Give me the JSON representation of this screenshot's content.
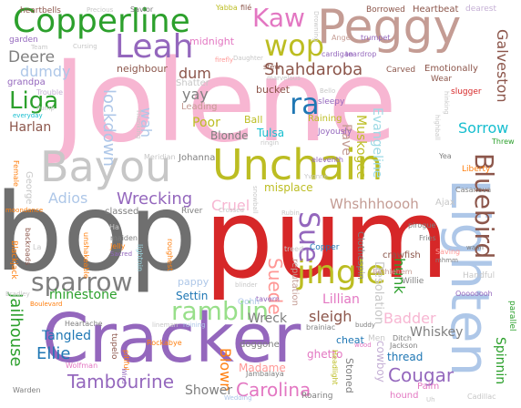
{
  "words": [
    {
      "text": "bop",
      "color": "#6f6f6f"
    },
    {
      "text": "pum",
      "color": "#d62728"
    },
    {
      "text": "Jolene",
      "color": "#f7b6d2"
    },
    {
      "text": "Cracker",
      "color": "#9467bd"
    },
    {
      "text": "Unchain",
      "color": "#bcbd22"
    },
    {
      "text": "Lighten",
      "color": "#aec7e8"
    },
    {
      "text": "Bayou",
      "color": "#c7c7c7"
    },
    {
      "text": "Peggy",
      "color": "#c49c94"
    },
    {
      "text": "Copperline",
      "color": "#2ca02c"
    },
    {
      "text": "Kaw",
      "color": "#e377c2"
    },
    {
      "text": "Leah",
      "color": "#9467bd"
    },
    {
      "text": "wop",
      "color": "#bcbd22"
    },
    {
      "text": "jingle",
      "color": "#bcbd22"
    },
    {
      "text": "sparrow",
      "color": "#7f7f7f"
    },
    {
      "text": "ramblin",
      "color": "#98df8a"
    },
    {
      "text": "Bluebird",
      "color": "#8c564b"
    },
    {
      "text": "Liga",
      "color": "#2ca02c"
    },
    {
      "text": "ra",
      "color": "#1f77b4"
    },
    {
      "text": "Shahdaroba",
      "color": "#8c564b"
    },
    {
      "text": "Deere",
      "color": "#7f7f7f"
    },
    {
      "text": "dumdy",
      "color": "#aec7e8"
    },
    {
      "text": "Galveston",
      "color": "#8c564b"
    },
    {
      "text": "Sorrow",
      "color": "#17becf"
    },
    {
      "text": "Whshhhoooh",
      "color": "#c49c94"
    },
    {
      "text": "Wrecking",
      "color": "#9467bd"
    },
    {
      "text": "Adios",
      "color": "#aec7e8"
    },
    {
      "text": "Cruel",
      "color": "#f7b6d2"
    },
    {
      "text": "Sue",
      "color": "#9467bd"
    },
    {
      "text": "Tambourine",
      "color": "#9467bd"
    },
    {
      "text": "Carolina",
      "color": "#e377c2"
    },
    {
      "text": "Cougar",
      "color": "#9467bd"
    },
    {
      "text": "Jailhouse",
      "color": "#2ca02c"
    },
    {
      "text": "Ellie",
      "color": "#1f77b4"
    },
    {
      "text": "Tangled",
      "color": "#1f77b4"
    },
    {
      "text": "Spinnin",
      "color": "#2ca02c"
    },
    {
      "text": "Whiskey",
      "color": "#7f7f7f"
    },
    {
      "text": "Badder",
      "color": "#f7b6d2"
    },
    {
      "text": "sleigh",
      "color": "#8c564b"
    },
    {
      "text": "Lillian",
      "color": "#e377c2"
    },
    {
      "text": "Suede",
      "color": "#ff9896"
    },
    {
      "text": "hunk",
      "color": "#2ca02c"
    },
    {
      "text": "rhinestone",
      "color": "#2ca02c"
    },
    {
      "text": "Wreck",
      "color": "#7f7f7f"
    },
    {
      "text": "Blown",
      "color": "#ff7f0e"
    },
    {
      "text": "Madame",
      "color": "#ff9896"
    },
    {
      "text": "Shower",
      "color": "#7f7f7f"
    },
    {
      "text": "Harlan",
      "color": "#8c564b"
    },
    {
      "text": "lockdown",
      "color": "#aec7e8"
    },
    {
      "text": "wah",
      "color": "#aec7e8"
    },
    {
      "text": "yay",
      "color": "#7f7f7f"
    },
    {
      "text": "dum",
      "color": "#8c564b"
    },
    {
      "text": "Poor",
      "color": "#bcbd22"
    },
    {
      "text": "Blonde",
      "color": "#7f7f7f"
    },
    {
      "text": "Rave",
      "color": "#c49c94"
    },
    {
      "text": "Muskogee",
      "color": "#bcbd22"
    },
    {
      "text": "Evangeline",
      "color": "#9edae5"
    },
    {
      "text": "Desolation",
      "color": "#c7c7c7"
    },
    {
      "text": "cowboy",
      "color": "#c5b0d5"
    },
    {
      "text": "Clothespin",
      "color": "#7f7f7f"
    },
    {
      "text": "misplace",
      "color": "#bcbd22"
    },
    {
      "text": "Settin",
      "color": "#1f77b4"
    },
    {
      "text": "pappy",
      "color": "#aec7e8"
    },
    {
      "text": "classed",
      "color": "#7f7f7f"
    },
    {
      "text": "reputation",
      "color": "#c49c94"
    },
    {
      "text": "Raining",
      "color": "#bcbd22"
    },
    {
      "text": "Tulsa",
      "color": "#17becf"
    },
    {
      "text": "Joyously",
      "color": "#9467bd"
    },
    {
      "text": "Heartbeat",
      "color": "#8c564b"
    },
    {
      "text": "Borrowed",
      "color": "#8c564b"
    },
    {
      "text": "heartbells",
      "color": "#8c564b"
    },
    {
      "text": "neighbour",
      "color": "#8c564b"
    },
    {
      "text": "midnight",
      "color": "#e377c2"
    },
    {
      "text": "Shatter",
      "color": "#c7c7c7"
    },
    {
      "text": "Leading",
      "color": "#c49c94"
    },
    {
      "text": "bucket",
      "color": "#8c564b"
    },
    {
      "text": "Emotionally",
      "color": "#8c564b"
    },
    {
      "text": "Carved",
      "color": "#8c564b"
    },
    {
      "text": "Wear",
      "color": "#8c564b"
    },
    {
      "text": "slugger",
      "color": "#d62728"
    },
    {
      "text": "grandpa",
      "color": "#9467bd"
    },
    {
      "text": "garden",
      "color": "#9467bd"
    },
    {
      "text": "Trouble",
      "color": "#c5b0d5"
    },
    {
      "text": "everyday",
      "color": "#17becf"
    },
    {
      "text": "Angel",
      "color": "#c49c94"
    },
    {
      "text": "trumpet",
      "color": "#9467bd"
    },
    {
      "text": "cardigan",
      "color": "#9467bd"
    },
    {
      "text": "teardrop",
      "color": "#9467bd"
    },
    {
      "text": "stew",
      "color": "#8c564b"
    },
    {
      "text": "sleepy",
      "color": "#9467bd"
    },
    {
      "text": "Ball",
      "color": "#bcbd22"
    },
    {
      "text": "Liberty",
      "color": "#ff7f0e"
    },
    {
      "text": "Casanova",
      "color": "#7f7f7f"
    },
    {
      "text": "Ajax",
      "color": "#c7c7c7"
    },
    {
      "text": "River",
      "color": "#7f7f7f"
    },
    {
      "text": "Johanna",
      "color": "#7f7f7f"
    },
    {
      "text": "Meridian",
      "color": "#c7c7c7"
    },
    {
      "text": "Female",
      "color": "#ff7f0e"
    },
    {
      "text": "George",
      "color": "#c7c7c7"
    },
    {
      "text": "Blackjack",
      "color": "#ff7f0e"
    },
    {
      "text": "backroads",
      "color": "#8c564b"
    },
    {
      "text": "moondance",
      "color": "#ff7f0e"
    },
    {
      "text": "unshakeable",
      "color": "#ff7f0e"
    },
    {
      "text": "maiden",
      "color": "#7f7f7f"
    },
    {
      "text": "Jelly",
      "color": "#ff7f0e"
    },
    {
      "text": "Sacred",
      "color": "#9467bd"
    },
    {
      "text": "tupelo",
      "color": "#8c564b"
    },
    {
      "text": "Boulevard",
      "color": "#ff7f0e"
    },
    {
      "text": "Heartache",
      "color": "#7f7f7f"
    },
    {
      "text": "Wolfman",
      "color": "#e377c2"
    },
    {
      "text": "Warden",
      "color": "#7f7f7f"
    },
    {
      "text": "pitiful",
      "color": "#ff7f0e"
    },
    {
      "text": "Wind",
      "color": "#9467bd"
    },
    {
      "text": "Jambalaya",
      "color": "#7f7f7f"
    },
    {
      "text": "Wedding",
      "color": "#aec7e8"
    },
    {
      "text": "doggone",
      "color": "#7f7f7f"
    },
    {
      "text": "Rockabye",
      "color": "#ff7f0e"
    },
    {
      "text": "lineman",
      "color": "#c7c7c7"
    },
    {
      "text": "ruining",
      "color": "#aec7e8"
    },
    {
      "text": "tavern",
      "color": "#9467bd"
    },
    {
      "text": "Oohh",
      "color": "#aec7e8"
    },
    {
      "text": "brainiac",
      "color": "#7f7f7f"
    },
    {
      "text": "buddy",
      "color": "#7f7f7f"
    },
    {
      "text": "cheat",
      "color": "#1f77b4"
    },
    {
      "text": "Men",
      "color": "#c7c7c7"
    },
    {
      "text": "ghetto",
      "color": "#e377c2"
    },
    {
      "text": "Stoned",
      "color": "#7f7f7f"
    },
    {
      "text": "Headlight",
      "color": "#bcbd22"
    },
    {
      "text": "wood",
      "color": "#e377c2"
    },
    {
      "text": "thread",
      "color": "#1f77b4"
    },
    {
      "text": "Jackson",
      "color": "#7f7f7f"
    },
    {
      "text": "Ditch",
      "color": "#7f7f7f"
    },
    {
      "text": "Palm",
      "color": "#e377c2"
    },
    {
      "text": "hound",
      "color": "#e377c2"
    },
    {
      "text": "Roaring",
      "color": "#7f7f7f"
    },
    {
      "text": "Cadillac",
      "color": "#c7c7c7"
    },
    {
      "text": "parallel",
      "color": "#2ca02c"
    },
    {
      "text": "Oooooooh",
      "color": "#9467bd"
    },
    {
      "text": "Handful",
      "color": "#c7c7c7"
    },
    {
      "text": "Saving",
      "color": "#ff9896"
    },
    {
      "text": "mhmm",
      "color": "#7f7f7f"
    },
    {
      "text": "wadn",
      "color": "#7f7f7f"
    },
    {
      "text": "crawfish",
      "color": "#8c564b"
    },
    {
      "text": "pirogue",
      "color": "#7f7f7f"
    },
    {
      "text": "Fries",
      "color": "#7f7f7f"
    },
    {
      "text": "Willie",
      "color": "#7f7f7f"
    },
    {
      "text": "Bethlehem",
      "color": "#c49c94"
    },
    {
      "text": "treed",
      "color": "#c7c7c7"
    },
    {
      "text": "Copper",
      "color": "#1f77b4"
    },
    {
      "text": "Yvonne",
      "color": "#c7c7c7"
    },
    {
      "text": "eleventh",
      "color": "#9467bd"
    },
    {
      "text": "ringin",
      "color": "#c7c7c7"
    },
    {
      "text": "snowball",
      "color": "#c7c7c7"
    },
    {
      "text": "Thanking",
      "color": "#c7c7c7"
    },
    {
      "text": "lightnin",
      "color": "#9edae5"
    },
    {
      "text": "roughest",
      "color": "#ff7f0e"
    },
    {
      "text": "blinder",
      "color": "#c7c7c7"
    },
    {
      "text": "Crossed",
      "color": "#c7c7c7"
    },
    {
      "text": "Threw",
      "color": "#2ca02c"
    },
    {
      "text": "Yea",
      "color": "#7f7f7f"
    },
    {
      "text": "hinking",
      "color": "#c7c7c7"
    },
    {
      "text": "highball",
      "color": "#c7c7c7"
    },
    {
      "text": "Bello",
      "color": "#c7c7c7"
    },
    {
      "text": "firefly",
      "color": "#ff9896"
    },
    {
      "text": "marvelous",
      "color": "#c7c7c7"
    },
    {
      "text": "Daughter",
      "color": "#c7c7c7"
    },
    {
      "text": "Drowning",
      "color": "#c7c7c7"
    },
    {
      "text": "Cursing",
      "color": "#c7c7c7"
    },
    {
      "text": "Team",
      "color": "#c7c7c7"
    },
    {
      "text": "Savior",
      "color": "#7f7f7f"
    },
    {
      "text": "Precious",
      "color": "#c7c7c7"
    },
    {
      "text": "Yabba",
      "color": "#bcbd22"
    },
    {
      "text": "filé",
      "color": "#8c564b"
    },
    {
      "text": "dearest",
      "color": "#c5b0d5"
    },
    {
      "text": "Pump",
      "color": "#c7c7c7"
    },
    {
      "text": "Rubin",
      "color": "#c7c7c7"
    },
    {
      "text": "Ha",
      "color": "#c7c7c7"
    },
    {
      "text": "La",
      "color": "#c7c7c7"
    },
    {
      "text": "Bradley",
      "color": "#c7c7c7"
    },
    {
      "text": "Uh",
      "color": "#c7c7c7"
    }
  ]
}
